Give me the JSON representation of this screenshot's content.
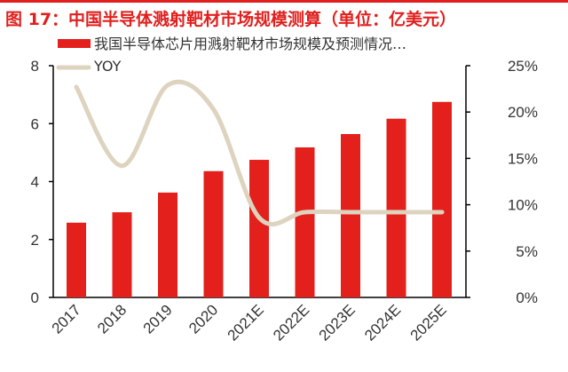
{
  "title": "图 17：中国半导体溅射靶材市场规模测算（单位：亿美元）",
  "chart_data": {
    "type": "bar+line",
    "title": "图 17：中国半导体溅射靶材市场规模测算（单位：亿美元）",
    "categories": [
      "2017",
      "2018",
      "2019",
      "2020",
      "2021E",
      "2022E",
      "2023E",
      "2024E",
      "2025E"
    ],
    "series": [
      {
        "name": "我国半导体芯片用溅射靶材市场规模及预测情况…",
        "type": "bar",
        "axis": "left",
        "color": "#e3201b",
        "values": [
          2.58,
          2.94,
          3.62,
          4.36,
          4.75,
          5.18,
          5.64,
          6.17,
          6.75
        ]
      },
      {
        "name": "YOY",
        "type": "line",
        "axis": "right",
        "color": "#ddd3bf",
        "values": [
          22.7,
          14.2,
          22.9,
          20.3,
          8.6,
          9.2,
          9.2,
          9.2,
          9.2
        ]
      }
    ],
    "left_axis": {
      "range": [
        0,
        8
      ],
      "ticks": [
        "0",
        "2",
        "4",
        "6",
        "8"
      ]
    },
    "right_axis": {
      "range": [
        0,
        25
      ],
      "unit": "%",
      "ticks": [
        "0%",
        "5%",
        "10%",
        "15%",
        "20%",
        "25%"
      ]
    },
    "grid": false,
    "legend_placement": "top-left"
  }
}
